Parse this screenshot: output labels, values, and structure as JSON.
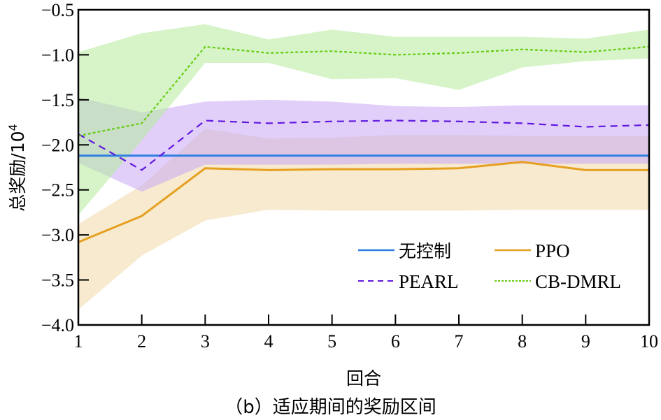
{
  "caption": "（b）适应期间的奖励区间",
  "chart_data": {
    "type": "line",
    "title": "",
    "subtitle": "（b）适应期间的奖励区间",
    "xlabel": "回合",
    "ylabel": "总奖励/10⁴",
    "ylabel_main": "总奖励/10",
    "ylabel_exp": "4",
    "xlim": [
      1,
      10
    ],
    "ylim": [
      -4.0,
      -0.5
    ],
    "x": [
      1,
      2,
      3,
      4,
      5,
      6,
      7,
      8,
      9,
      10
    ],
    "xticks": [
      "1",
      "2",
      "3",
      "4",
      "5",
      "6",
      "7",
      "8",
      "9",
      "10"
    ],
    "yticks": [
      -4.0,
      -3.5,
      -3.0,
      -2.5,
      -2.0,
      -1.5,
      -1.0,
      -0.5
    ],
    "ytick_labels": [
      "−4.0",
      "−3.5",
      "−3.0",
      "−2.5",
      "−2.0",
      "−1.5",
      "−1.0",
      "−0.5"
    ],
    "grid": false,
    "legend_position": "lower right (inside)",
    "series": [
      {
        "name": "无控制",
        "color": "#2f7fe0",
        "style": "solid",
        "values": [
          -2.12,
          -2.12,
          -2.12,
          -2.12,
          -2.12,
          -2.12,
          -2.12,
          -2.12,
          -2.12,
          -2.12
        ]
      },
      {
        "name": "PPO",
        "color": "#e6a020",
        "band_color": "#f0d9a6",
        "style": "solid",
        "values": [
          -3.08,
          -2.79,
          -2.26,
          -2.28,
          -2.27,
          -2.27,
          -2.26,
          -2.19,
          -2.28,
          -2.28
        ],
        "upper": [
          -2.88,
          -2.45,
          -1.82,
          -1.93,
          -1.92,
          -1.89,
          -1.89,
          -1.9,
          -1.9,
          -1.9
        ],
        "lower": [
          -3.83,
          -3.23,
          -2.84,
          -2.72,
          -2.73,
          -2.73,
          -2.73,
          -2.72,
          -2.72,
          -2.72
        ]
      },
      {
        "name": "PEARL",
        "color": "#6018e0",
        "band_color": "#c9a8f5",
        "style": "dashed",
        "values": [
          -1.88,
          -2.28,
          -1.73,
          -1.76,
          -1.74,
          -1.73,
          -1.74,
          -1.76,
          -1.8,
          -1.78
        ],
        "upper": [
          -1.47,
          -1.64,
          -1.52,
          -1.5,
          -1.52,
          -1.57,
          -1.58,
          -1.56,
          -1.56,
          -1.56
        ],
        "lower": [
          -2.2,
          -2.52,
          -2.22,
          -2.22,
          -2.22,
          -2.21,
          -2.21,
          -2.21,
          -2.21,
          -2.21
        ]
      },
      {
        "name": "CB-DMRL",
        "color": "#66cc11",
        "band_color": "#b5eb9a",
        "style": "dotted",
        "values": [
          -1.9,
          -1.76,
          -0.91,
          -0.98,
          -0.96,
          -1.0,
          -0.98,
          -0.94,
          -0.97,
          -0.91
        ],
        "upper": [
          -0.97,
          -0.76,
          -0.66,
          -0.83,
          -0.72,
          -0.8,
          -0.8,
          -0.8,
          -0.82,
          -0.72
        ],
        "lower": [
          -2.78,
          -1.95,
          -1.09,
          -1.09,
          -1.27,
          -1.26,
          -1.39,
          -1.14,
          -1.07,
          -1.04
        ]
      }
    ]
  },
  "legend": {
    "items": [
      {
        "label": "无控制",
        "color": "#2f7fe0",
        "style": "solid"
      },
      {
        "label": "PPO",
        "color": "#e6a020",
        "style": "solid"
      },
      {
        "label": "PEARL",
        "color": "#6018e0",
        "style": "dashed"
      },
      {
        "label": "CB-DMRL",
        "color": "#66cc11",
        "style": "dotted"
      }
    ]
  }
}
